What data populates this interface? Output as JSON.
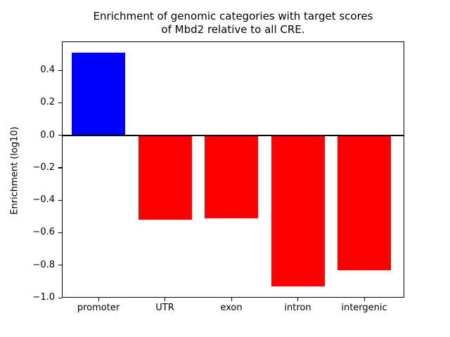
{
  "figure": {
    "title_line1": "Enrichment of genomic categories with target scores",
    "title_line2": "of Mbd2 relative to all CRE."
  },
  "chart_data": {
    "type": "bar",
    "title": "Enrichment of genomic categories with target scores\nof Mbd2 relative to all CRE.",
    "categories": [
      "promoter",
      "UTR",
      "exon",
      "intron",
      "intergenic"
    ],
    "values": [
      0.51,
      -0.52,
      -0.51,
      -0.93,
      -0.83
    ],
    "bar_colors": [
      "#0000ff",
      "#ff0000",
      "#ff0000",
      "#ff0000",
      "#ff0000"
    ],
    "positive_color": "#0000ff",
    "negative_color": "#ff0000",
    "xlabel": "",
    "ylabel": "Enrichment (log10)",
    "ylim": [
      -1.0,
      0.578
    ],
    "yticks": [
      0.4,
      0.2,
      0.0,
      -0.2,
      -0.4,
      -0.6,
      -0.8,
      -1.0
    ],
    "ytick_labels": [
      "0.4",
      "0.2",
      "0.0",
      "−0.2",
      "−0.4",
      "−0.6",
      "−0.8",
      "−1.0"
    ],
    "grid": false,
    "zero_line": true,
    "legend_position": "none",
    "background_color": "#ffffff"
  }
}
